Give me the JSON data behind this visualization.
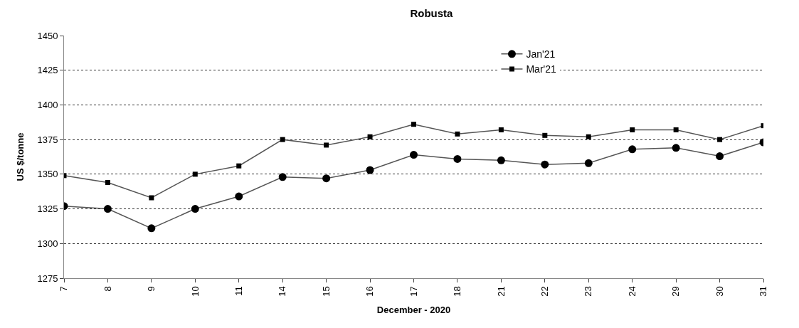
{
  "chart_data": {
    "type": "line",
    "title": "Robusta",
    "xlabel": "December - 2020",
    "ylabel": "US $/tonne",
    "categories": [
      "7",
      "8",
      "9",
      "10",
      "11",
      "14",
      "15",
      "16",
      "17",
      "18",
      "21",
      "22",
      "23",
      "24",
      "29",
      "30",
      "31"
    ],
    "series": [
      {
        "name": "Jan'21",
        "color": "#000000",
        "marker": "circle",
        "values": [
          1327,
          1325,
          1311,
          1325,
          1334,
          1348,
          1347,
          1353,
          1364,
          1361,
          1360,
          1357,
          1358,
          1368,
          1369,
          1363,
          1373
        ]
      },
      {
        "name": "Mar'21",
        "color": "#000000",
        "marker": "square",
        "values": [
          1349,
          1344,
          1333,
          1350,
          1356,
          1375,
          1371,
          1377,
          1386,
          1379,
          1382,
          1378,
          1377,
          1382,
          1382,
          1375,
          1385
        ]
      }
    ],
    "ylim": [
      1275,
      1450
    ],
    "yticks": [
      1275,
      1300,
      1325,
      1350,
      1375,
      1400,
      1425,
      1450
    ],
    "grid": "y",
    "legend": "top right",
    "line_style": "solid"
  }
}
